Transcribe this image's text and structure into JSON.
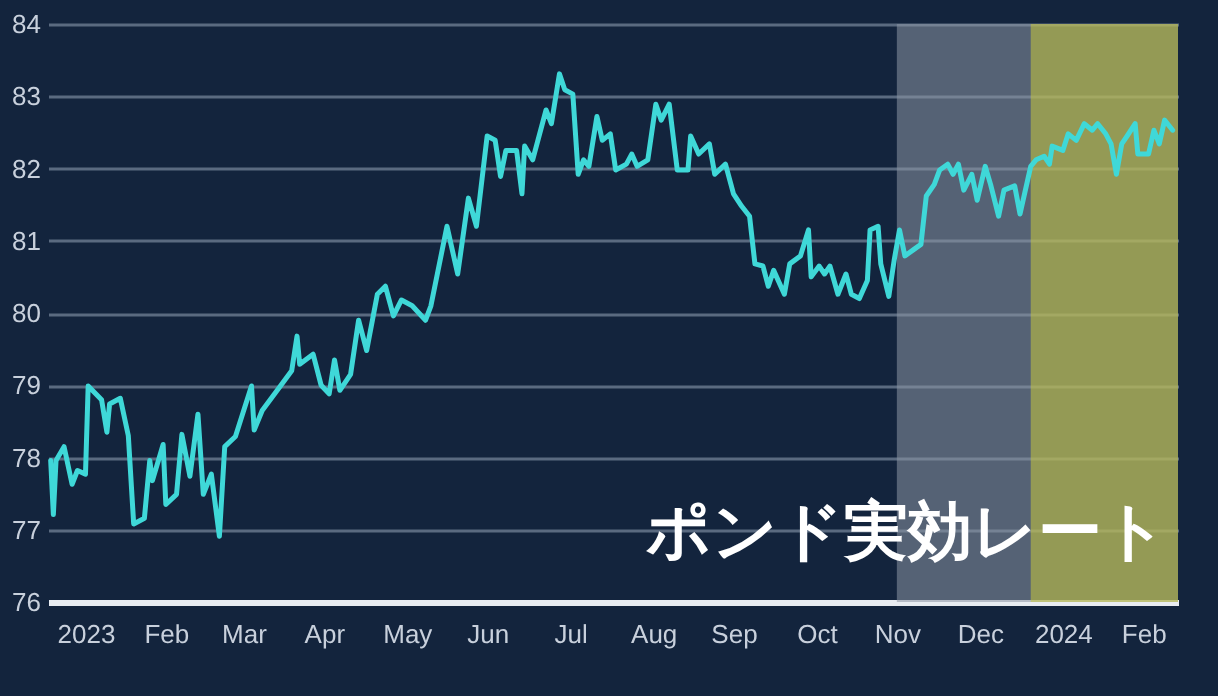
{
  "chart_data": {
    "type": "line",
    "title": "ポンド実効レート",
    "x": [
      "2023-01-03",
      "2023-01-04",
      "2023-01-05",
      "2023-01-08",
      "2023-01-11",
      "2023-01-13",
      "2023-01-16",
      "2023-01-17",
      "2023-01-22",
      "2023-01-24",
      "2023-01-25",
      "2023-01-29",
      "2023-02-01",
      "2023-02-03",
      "2023-02-07",
      "2023-02-09",
      "2023-02-10",
      "2023-02-14",
      "2023-02-15",
      "2023-02-19",
      "2023-02-21",
      "2023-02-24",
      "2023-02-27",
      "2023-03-01",
      "2023-03-04",
      "2023-03-07",
      "2023-03-09",
      "2023-03-13",
      "2023-03-19",
      "2023-03-20",
      "2023-03-23",
      "2023-03-30",
      "2023-04-03",
      "2023-04-05",
      "2023-04-06",
      "2023-04-11",
      "2023-04-14",
      "2023-04-17",
      "2023-04-19",
      "2023-04-21",
      "2023-04-25",
      "2023-04-28",
      "2023-05-01",
      "2023-05-05",
      "2023-05-08",
      "2023-05-11",
      "2023-05-14",
      "2023-05-18",
      "2023-05-23",
      "2023-05-25",
      "2023-05-31",
      "2023-06-04",
      "2023-06-08",
      "2023-06-11",
      "2023-06-15",
      "2023-06-18",
      "2023-06-20",
      "2023-06-22",
      "2023-06-26",
      "2023-06-28",
      "2023-06-29",
      "2023-07-02",
      "2023-07-07",
      "2023-07-09",
      "2023-07-12",
      "2023-07-14",
      "2023-07-17",
      "2023-07-19",
      "2023-07-21",
      "2023-07-23",
      "2023-07-26",
      "2023-07-28",
      "2023-07-31",
      "2023-08-02",
      "2023-08-06",
      "2023-08-08",
      "2023-08-10",
      "2023-08-14",
      "2023-08-17",
      "2023-08-19",
      "2023-08-22",
      "2023-08-25",
      "2023-08-29",
      "2023-08-30",
      "2023-09-02",
      "2023-09-06",
      "2023-09-08",
      "2023-09-12",
      "2023-09-15",
      "2023-09-18",
      "2023-09-21",
      "2023-09-23",
      "2023-09-26",
      "2023-09-28",
      "2023-09-30",
      "2023-10-04",
      "2023-10-06",
      "2023-10-10",
      "2023-10-13",
      "2023-10-14",
      "2023-10-17",
      "2023-10-19",
      "2023-10-21",
      "2023-10-24",
      "2023-10-27",
      "2023-10-29",
      "2023-11-01",
      "2023-11-04",
      "2023-11-05",
      "2023-11-08",
      "2023-11-09",
      "2023-11-12",
      "2023-11-14",
      "2023-11-16",
      "2023-11-18",
      "2023-11-21",
      "2023-11-24",
      "2023-11-26",
      "2023-11-29",
      "2023-12-01",
      "2023-12-04",
      "2023-12-06",
      "2023-12-08",
      "2023-12-10",
      "2023-12-13",
      "2023-12-15",
      "2023-12-18",
      "2023-12-20",
      "2023-12-23",
      "2023-12-25",
      "2023-12-29",
      "2023-12-31",
      "2024-01-04",
      "2024-01-06",
      "2024-01-09",
      "2024-01-11",
      "2024-01-12",
      "2024-01-16",
      "2024-01-18",
      "2024-01-21",
      "2024-01-24",
      "2024-01-27",
      "2024-01-29",
      "2024-02-01",
      "2024-02-03",
      "2024-02-05",
      "2024-02-07",
      "2024-02-09",
      "2024-02-12",
      "2024-02-13",
      "2024-02-17",
      "2024-02-19",
      "2024-02-21",
      "2024-02-23",
      "2024-02-26"
    ],
    "series": [
      {
        "color": "#3fd8d8",
        "values": [
          77.96,
          77.21,
          77.96,
          78.15,
          77.63,
          77.82,
          77.77,
          78.99,
          78.8,
          78.35,
          78.74,
          78.82,
          78.3,
          77.08,
          77.16,
          77.96,
          77.68,
          78.18,
          77.35,
          77.49,
          78.32,
          77.74,
          78.6,
          77.49,
          77.77,
          76.91,
          78.15,
          78.29,
          78.99,
          78.38,
          78.65,
          79.0,
          79.2,
          79.68,
          79.29,
          79.43,
          79.0,
          78.88,
          79.35,
          78.93,
          79.15,
          79.9,
          79.48,
          80.26,
          80.37,
          79.96,
          80.18,
          80.1,
          79.9,
          80.1,
          81.2,
          80.54,
          81.59,
          81.2,
          82.45,
          82.39,
          81.89,
          82.25,
          82.25,
          81.65,
          82.31,
          82.12,
          82.81,
          82.62,
          83.31,
          83.09,
          83.03,
          81.92,
          82.12,
          82.03,
          82.72,
          82.39,
          82.48,
          81.98,
          82.06,
          82.2,
          82.03,
          82.12,
          82.89,
          82.67,
          82.89,
          81.98,
          81.98,
          82.45,
          82.2,
          82.34,
          81.92,
          82.06,
          81.65,
          81.48,
          81.34,
          80.68,
          80.65,
          80.37,
          80.59,
          80.26,
          80.68,
          80.79,
          81.15,
          80.5,
          80.65,
          80.54,
          80.65,
          80.26,
          80.54,
          80.26,
          80.2,
          80.45,
          81.15,
          81.2,
          80.68,
          80.23,
          80.73,
          81.15,
          80.79,
          80.87,
          80.95,
          81.62,
          81.78,
          81.98,
          82.06,
          81.92,
          82.06,
          81.7,
          81.92,
          81.56,
          82.03,
          81.78,
          81.34,
          81.7,
          81.76,
          81.37,
          82.03,
          82.12,
          82.17,
          82.06,
          82.31,
          82.25,
          82.48,
          82.39,
          82.62,
          82.53,
          82.62,
          82.48,
          82.34,
          81.92,
          82.34,
          82.45,
          82.62,
          82.2,
          82.2,
          82.53,
          82.34,
          82.67,
          82.53
        ]
      }
    ],
    "xlim": [
      "2023-01-02",
      "2024-02-28"
    ],
    "xticks": [
      {
        "value": "2023-01-16",
        "label": "2023"
      },
      {
        "value": "2023-02-15",
        "label": "Feb"
      },
      {
        "value": "2023-03-16",
        "label": "Mar"
      },
      {
        "value": "2023-04-15",
        "label": "Apr"
      },
      {
        "value": "2023-05-16",
        "label": "May"
      },
      {
        "value": "2023-06-15",
        "label": "Jun"
      },
      {
        "value": "2023-07-16",
        "label": "Jul"
      },
      {
        "value": "2023-08-16",
        "label": "Aug"
      },
      {
        "value": "2023-09-15",
        "label": "Sep"
      },
      {
        "value": "2023-10-16",
        "label": "Oct"
      },
      {
        "value": "2023-11-15",
        "label": "Nov"
      },
      {
        "value": "2023-12-16",
        "label": "Dec"
      },
      {
        "value": "2024-01-16",
        "label": "2024"
      },
      {
        "value": "2024-02-15",
        "label": "Feb"
      }
    ],
    "ylim": [
      76,
      84
    ],
    "yticks": [
      76,
      77,
      78,
      79,
      80,
      81,
      82,
      83,
      84
    ],
    "grid": "y",
    "bands": [
      {
        "axis": "x",
        "from": "2023-11-15",
        "to": "2024-02-28",
        "color": "#8c96a4"
      },
      {
        "axis": "x",
        "from": "2024-01-04",
        "to": "2024-02-28",
        "color": "#c8c83a"
      }
    ]
  }
}
